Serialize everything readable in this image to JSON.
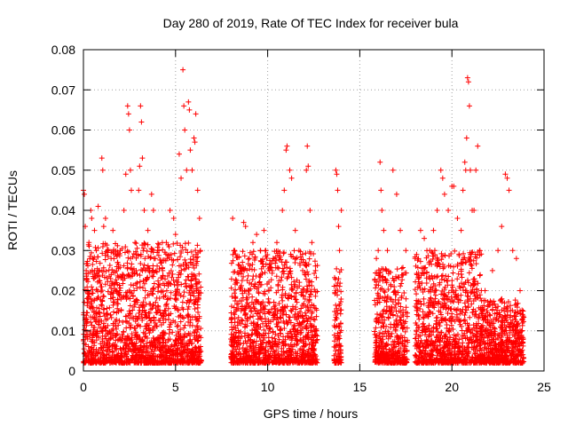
{
  "chart_data": {
    "type": "scatter",
    "title": "Day 280 of 2019, Rate Of TEC Index for receiver bula",
    "xlabel": "GPS time / hours",
    "ylabel": "ROTI / TECUs",
    "xlim": [
      0,
      24
    ],
    "ylim": [
      0,
      0.08
    ],
    "xticks": [
      0,
      5,
      10,
      15,
      20,
      25
    ],
    "xtick_labels": [
      "0",
      "5",
      "10",
      "15",
      "20",
      "25"
    ],
    "yticks": [
      0,
      0.01,
      0.02,
      0.03,
      0.04,
      0.05,
      0.06,
      0.07,
      0.08
    ],
    "ytick_labels": [
      "0",
      "0.01",
      "0.02",
      "0.03",
      "0.04",
      "0.05",
      "0.06",
      "0.07",
      "0.08"
    ],
    "grid": true,
    "marker": "+",
    "color": "#ff0000",
    "series": [
      {
        "points": [
          [
            0.0,
            0.045
          ],
          [
            0.05,
            0.044
          ],
          [
            0.1,
            0.036
          ],
          [
            0.15,
            0.025
          ],
          [
            0.2,
            0.018
          ],
          [
            0.3,
            0.032
          ],
          [
            0.4,
            0.04
          ],
          [
            0.45,
            0.038
          ],
          [
            0.5,
            0.028
          ],
          [
            0.6,
            0.035
          ],
          [
            0.7,
            0.03
          ],
          [
            0.8,
            0.041
          ],
          [
            1.0,
            0.053
          ],
          [
            1.05,
            0.05
          ],
          [
            1.1,
            0.036
          ],
          [
            1.2,
            0.038
          ],
          [
            1.3,
            0.03
          ],
          [
            1.5,
            0.028
          ],
          [
            1.6,
            0.035
          ],
          [
            1.8,
            0.022
          ],
          [
            2.0,
            0.03
          ],
          [
            2.2,
            0.04
          ],
          [
            2.3,
            0.049
          ],
          [
            2.4,
            0.066
          ],
          [
            2.45,
            0.064
          ],
          [
            2.5,
            0.06
          ],
          [
            2.55,
            0.05
          ],
          [
            2.6,
            0.045
          ],
          [
            2.8,
            0.032
          ],
          [
            3.0,
            0.045
          ],
          [
            3.05,
            0.051
          ],
          [
            3.1,
            0.066
          ],
          [
            3.15,
            0.062
          ],
          [
            3.2,
            0.053
          ],
          [
            3.3,
            0.04
          ],
          [
            3.5,
            0.035
          ],
          [
            3.7,
            0.044
          ],
          [
            3.8,
            0.04
          ],
          [
            3.9,
            0.028
          ],
          [
            4.1,
            0.03
          ],
          [
            4.3,
            0.025
          ],
          [
            4.5,
            0.032
          ],
          [
            4.7,
            0.04
          ],
          [
            4.9,
            0.038
          ],
          [
            5.0,
            0.034
          ],
          [
            5.2,
            0.054
          ],
          [
            5.3,
            0.048
          ],
          [
            5.4,
            0.075
          ],
          [
            5.45,
            0.066
          ],
          [
            5.5,
            0.06
          ],
          [
            5.6,
            0.05
          ],
          [
            5.7,
            0.067
          ],
          [
            5.75,
            0.065
          ],
          [
            5.8,
            0.055
          ],
          [
            5.9,
            0.05
          ],
          [
            6.0,
            0.058
          ],
          [
            6.05,
            0.057
          ],
          [
            6.1,
            0.064
          ],
          [
            6.2,
            0.045
          ],
          [
            6.3,
            0.038
          ],
          [
            6.35,
            0.03
          ],
          [
            8.1,
            0.038
          ],
          [
            8.2,
            0.03
          ],
          [
            8.3,
            0.022
          ],
          [
            8.5,
            0.025
          ],
          [
            8.7,
            0.037
          ],
          [
            8.8,
            0.036
          ],
          [
            9.0,
            0.028
          ],
          [
            9.2,
            0.032
          ],
          [
            9.4,
            0.034
          ],
          [
            9.6,
            0.03
          ],
          [
            9.8,
            0.035
          ],
          [
            9.9,
            0.03
          ],
          [
            10.1,
            0.025
          ],
          [
            10.3,
            0.028
          ],
          [
            10.5,
            0.032
          ],
          [
            10.8,
            0.04
          ],
          [
            10.9,
            0.045
          ],
          [
            11.0,
            0.055
          ],
          [
            11.05,
            0.056
          ],
          [
            11.2,
            0.05
          ],
          [
            11.3,
            0.048
          ],
          [
            11.5,
            0.035
          ],
          [
            11.7,
            0.03
          ],
          [
            11.9,
            0.025
          ],
          [
            12.1,
            0.05
          ],
          [
            12.15,
            0.056
          ],
          [
            12.2,
            0.051
          ],
          [
            12.3,
            0.04
          ],
          [
            12.4,
            0.032
          ],
          [
            12.6,
            0.025
          ],
          [
            13.7,
            0.05
          ],
          [
            13.75,
            0.049
          ],
          [
            13.8,
            0.045
          ],
          [
            13.85,
            0.036
          ],
          [
            13.9,
            0.03
          ],
          [
            14.0,
            0.04
          ],
          [
            15.9,
            0.028
          ],
          [
            16.0,
            0.03
          ],
          [
            16.1,
            0.052
          ],
          [
            16.15,
            0.045
          ],
          [
            16.2,
            0.04
          ],
          [
            16.3,
            0.035
          ],
          [
            16.5,
            0.03
          ],
          [
            16.8,
            0.05
          ],
          [
            17.0,
            0.044
          ],
          [
            17.2,
            0.035
          ],
          [
            17.5,
            0.03
          ],
          [
            18.0,
            0.028
          ],
          [
            18.3,
            0.035
          ],
          [
            18.5,
            0.033
          ],
          [
            18.8,
            0.03
          ],
          [
            19.0,
            0.035
          ],
          [
            19.2,
            0.04
          ],
          [
            19.4,
            0.05
          ],
          [
            19.5,
            0.048
          ],
          [
            19.6,
            0.044
          ],
          [
            19.8,
            0.04
          ],
          [
            20.0,
            0.046
          ],
          [
            20.1,
            0.046
          ],
          [
            20.3,
            0.038
          ],
          [
            20.5,
            0.035
          ],
          [
            20.6,
            0.045
          ],
          [
            20.7,
            0.052
          ],
          [
            20.75,
            0.05
          ],
          [
            20.8,
            0.058
          ],
          [
            20.85,
            0.073
          ],
          [
            20.9,
            0.072
          ],
          [
            20.95,
            0.066
          ],
          [
            21.0,
            0.05
          ],
          [
            21.1,
            0.04
          ],
          [
            21.2,
            0.04
          ],
          [
            21.3,
            0.05
          ],
          [
            21.4,
            0.056
          ],
          [
            21.5,
            0.03
          ],
          [
            21.8,
            0.02
          ],
          [
            22.2,
            0.025
          ],
          [
            22.5,
            0.03
          ],
          [
            22.7,
            0.036
          ],
          [
            22.9,
            0.049
          ],
          [
            23.0,
            0.048
          ],
          [
            23.1,
            0.045
          ],
          [
            23.3,
            0.03
          ],
          [
            23.5,
            0.028
          ],
          [
            23.7,
            0.02
          ]
        ],
        "dense_clusters": [
          {
            "x_range": [
              0.0,
              6.4
            ],
            "y_range": [
              0.002,
              0.032
            ]
          },
          {
            "x_range": [
              8.0,
              12.7
            ],
            "y_range": [
              0.002,
              0.03
            ]
          },
          {
            "x_range": [
              13.6,
              14.0
            ],
            "y_range": [
              0.002,
              0.026
            ]
          },
          {
            "x_range": [
              15.8,
              17.6
            ],
            "y_range": [
              0.002,
              0.026
            ]
          },
          {
            "x_range": [
              18.0,
              21.6
            ],
            "y_range": [
              0.002,
              0.03
            ]
          },
          {
            "x_range": [
              21.6,
              23.9
            ],
            "y_range": [
              0.002,
              0.018
            ]
          }
        ]
      }
    ]
  }
}
